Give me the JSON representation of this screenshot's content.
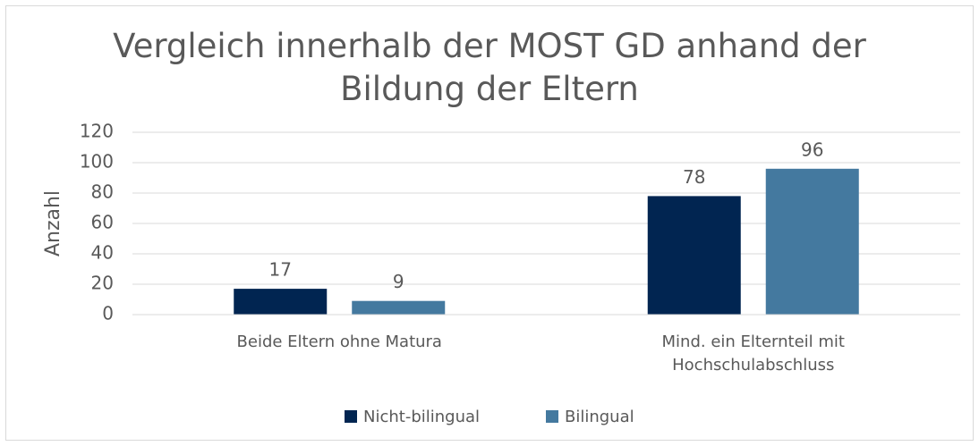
{
  "chart_data": {
    "type": "bar",
    "title": "Vergleich innerhalb der MOST GD anhand der Bildung der Eltern",
    "ylabel": "Anzahl",
    "categories": [
      "Beide Eltern ohne Matura",
      "Mind. ein Elternteil mit Hochschulabschluss"
    ],
    "series": [
      {
        "name": "Nicht-bilingual",
        "color": "#012551",
        "values": [
          17,
          78
        ]
      },
      {
        "name": "Bilingual",
        "color": "#44799f",
        "values": [
          9,
          96
        ]
      }
    ],
    "ylim": [
      0,
      120
    ],
    "yticks": [
      0,
      20,
      40,
      60,
      80,
      100,
      120
    ],
    "grid": true,
    "legend": "bottom"
  }
}
